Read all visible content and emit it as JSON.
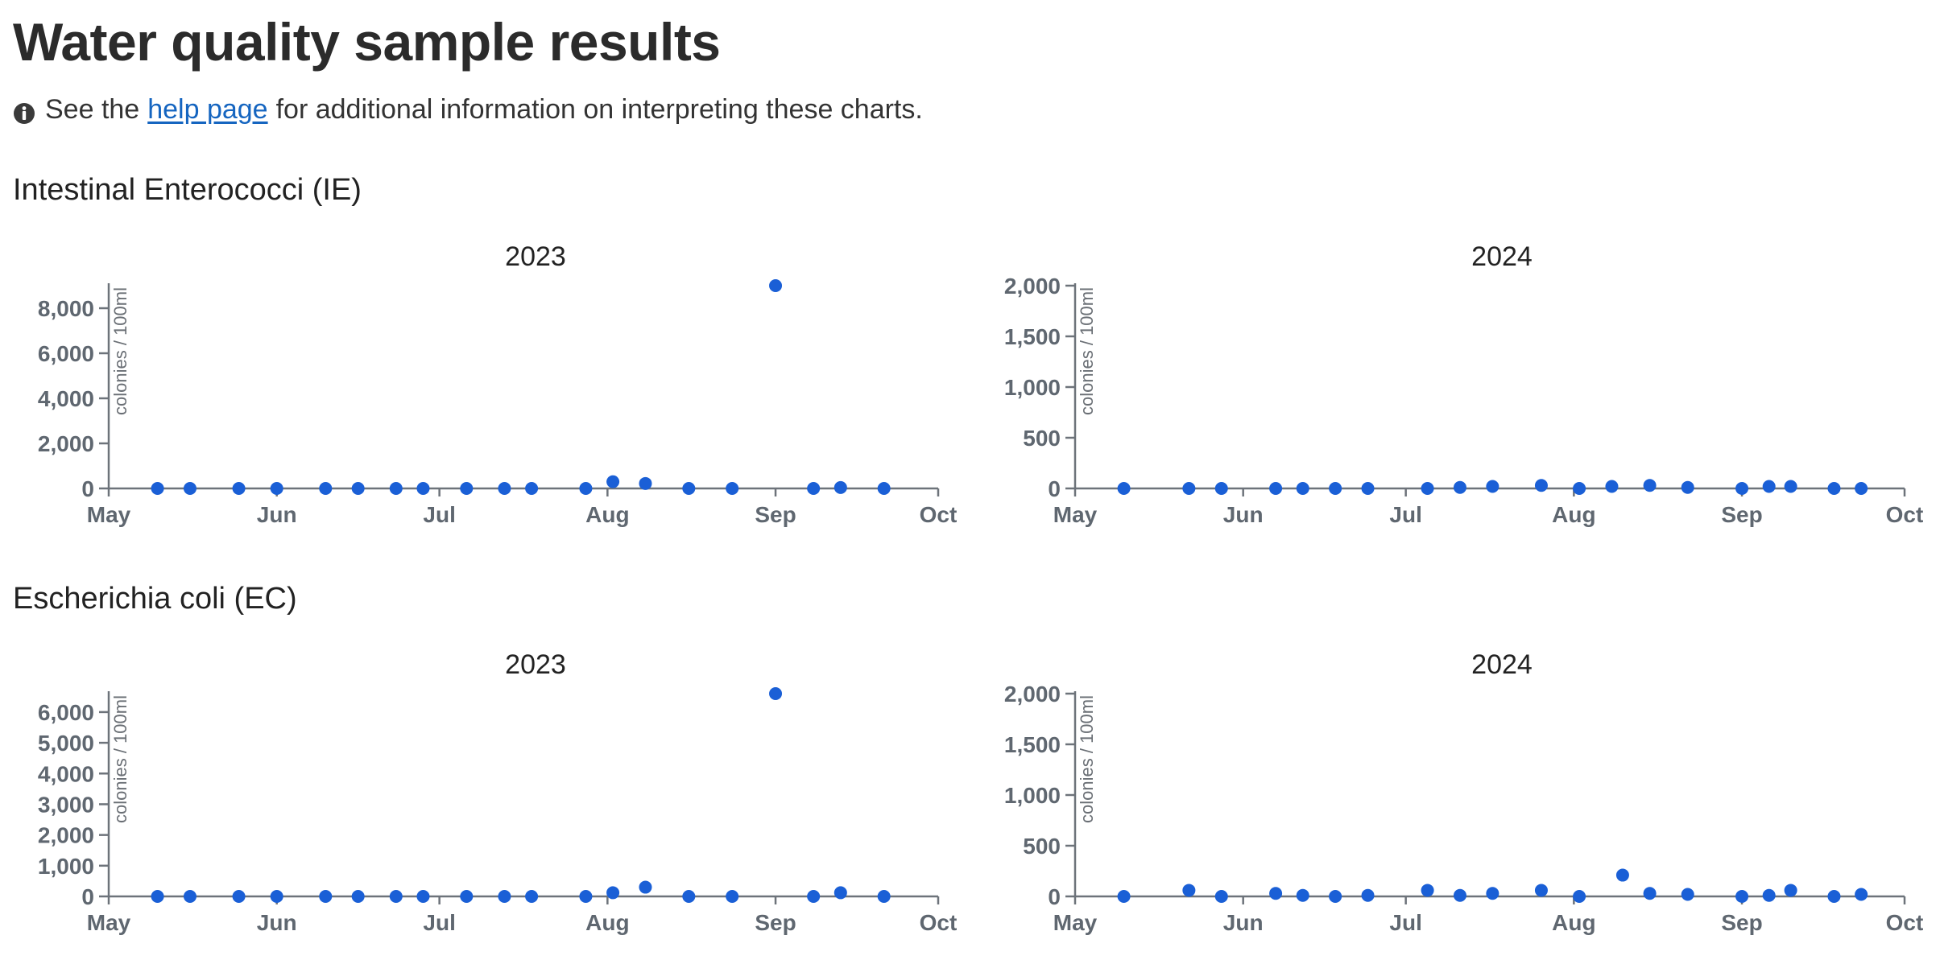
{
  "page": {
    "title": "Water quality sample results",
    "info": {
      "before": "See the",
      "link": "help page",
      "after": "for additional information on interpreting these charts."
    },
    "colors": {
      "point": "#1a5fd6",
      "axis": "#6d737a",
      "tick_text": "#5f6770",
      "link": "#1565c0"
    },
    "icons": {
      "info": "info-circle-icon"
    }
  },
  "sections": [
    {
      "title": "Intestinal Enterococci (IE)"
    },
    {
      "title": "Escherichia coli (EC)"
    }
  ],
  "chart_data": [
    {
      "type": "scatter",
      "group": "Intestinal Enterococci (IE)",
      "title": "2023",
      "xlabel": "",
      "ylabel": "colonies / 100ml",
      "x_ticks": [
        "May",
        "Jun",
        "Jul",
        "Aug",
        "Sep",
        "Oct"
      ],
      "xlim": [
        "2023-05-01",
        "2023-10-01"
      ],
      "ylim": [
        0,
        9000
      ],
      "y_ticks": [
        0,
        2000,
        4000,
        6000,
        8000
      ],
      "y_tick_labels": [
        "0",
        "2,000",
        "4,000",
        "6,000",
        "8,000"
      ],
      "grid": false,
      "points": [
        {
          "x": "2023-05-10",
          "y": 0
        },
        {
          "x": "2023-05-16",
          "y": 0
        },
        {
          "x": "2023-05-25",
          "y": 0
        },
        {
          "x": "2023-06-01",
          "y": 0
        },
        {
          "x": "2023-06-10",
          "y": 0
        },
        {
          "x": "2023-06-16",
          "y": 0
        },
        {
          "x": "2023-06-23",
          "y": 0
        },
        {
          "x": "2023-06-28",
          "y": 0
        },
        {
          "x": "2023-07-06",
          "y": 0
        },
        {
          "x": "2023-07-13",
          "y": 0
        },
        {
          "x": "2023-07-18",
          "y": 0
        },
        {
          "x": "2023-07-28",
          "y": 0
        },
        {
          "x": "2023-08-02",
          "y": 300
        },
        {
          "x": "2023-08-08",
          "y": 220
        },
        {
          "x": "2023-08-16",
          "y": 0
        },
        {
          "x": "2023-08-24",
          "y": 0
        },
        {
          "x": "2023-09-01",
          "y": 9000
        },
        {
          "x": "2023-09-08",
          "y": 0
        },
        {
          "x": "2023-09-13",
          "y": 40
        },
        {
          "x": "2023-09-21",
          "y": 0
        }
      ]
    },
    {
      "type": "scatter",
      "group": "Intestinal Enterococci (IE)",
      "title": "2024",
      "xlabel": "",
      "ylabel": "colonies / 100ml",
      "x_ticks": [
        "May",
        "Jun",
        "Jul",
        "Aug",
        "Sep",
        "Oct"
      ],
      "xlim": [
        "2024-05-01",
        "2024-10-01"
      ],
      "ylim": [
        0,
        2000
      ],
      "y_ticks": [
        0,
        500,
        1000,
        1500,
        2000
      ],
      "y_tick_labels": [
        "0",
        "500",
        "1,000",
        "1,500",
        "2,000"
      ],
      "grid": false,
      "points": [
        {
          "x": "2024-05-10",
          "y": 0
        },
        {
          "x": "2024-05-22",
          "y": 0
        },
        {
          "x": "2024-05-28",
          "y": 0
        },
        {
          "x": "2024-06-07",
          "y": 0
        },
        {
          "x": "2024-06-12",
          "y": 0
        },
        {
          "x": "2024-06-18",
          "y": 0
        },
        {
          "x": "2024-06-24",
          "y": 0
        },
        {
          "x": "2024-07-05",
          "y": 0
        },
        {
          "x": "2024-07-11",
          "y": 10
        },
        {
          "x": "2024-07-17",
          "y": 20
        },
        {
          "x": "2024-07-26",
          "y": 30
        },
        {
          "x": "2024-08-02",
          "y": 0
        },
        {
          "x": "2024-08-08",
          "y": 20
        },
        {
          "x": "2024-08-15",
          "y": 30
        },
        {
          "x": "2024-08-22",
          "y": 10
        },
        {
          "x": "2024-09-01",
          "y": 0
        },
        {
          "x": "2024-09-06",
          "y": 20
        },
        {
          "x": "2024-09-10",
          "y": 20
        },
        {
          "x": "2024-09-18",
          "y": 0
        },
        {
          "x": "2024-09-23",
          "y": 0
        }
      ]
    },
    {
      "type": "scatter",
      "group": "Escherichia coli (EC)",
      "title": "2023",
      "xlabel": "",
      "ylabel": "colonies / 100ml",
      "x_ticks": [
        "May",
        "Jun",
        "Jul",
        "Aug",
        "Sep",
        "Oct"
      ],
      "xlim": [
        "2023-05-01",
        "2023-10-01"
      ],
      "ylim": [
        0,
        6600
      ],
      "y_ticks": [
        0,
        1000,
        2000,
        3000,
        4000,
        5000,
        6000
      ],
      "y_tick_labels": [
        "0",
        "1,000",
        "2,000",
        "3,000",
        "4,000",
        "5,000",
        "6,000"
      ],
      "grid": false,
      "points": [
        {
          "x": "2023-05-10",
          "y": 0
        },
        {
          "x": "2023-05-16",
          "y": 0
        },
        {
          "x": "2023-05-25",
          "y": 0
        },
        {
          "x": "2023-06-01",
          "y": 0
        },
        {
          "x": "2023-06-10",
          "y": 0
        },
        {
          "x": "2023-06-16",
          "y": 0
        },
        {
          "x": "2023-06-23",
          "y": 0
        },
        {
          "x": "2023-06-28",
          "y": 0
        },
        {
          "x": "2023-07-06",
          "y": 0
        },
        {
          "x": "2023-07-13",
          "y": 0
        },
        {
          "x": "2023-07-18",
          "y": 0
        },
        {
          "x": "2023-07-28",
          "y": 0
        },
        {
          "x": "2023-08-02",
          "y": 120
        },
        {
          "x": "2023-08-08",
          "y": 300
        },
        {
          "x": "2023-08-16",
          "y": 0
        },
        {
          "x": "2023-08-24",
          "y": 0
        },
        {
          "x": "2023-09-01",
          "y": 6600
        },
        {
          "x": "2023-09-08",
          "y": 0
        },
        {
          "x": "2023-09-13",
          "y": 120
        },
        {
          "x": "2023-09-21",
          "y": 0
        }
      ]
    },
    {
      "type": "scatter",
      "group": "Escherichia coli (EC)",
      "title": "2024",
      "xlabel": "",
      "ylabel": "colonies / 100ml",
      "x_ticks": [
        "May",
        "Jun",
        "Jul",
        "Aug",
        "Sep",
        "Oct"
      ],
      "xlim": [
        "2024-05-01",
        "2024-10-01"
      ],
      "ylim": [
        0,
        2000
      ],
      "y_ticks": [
        0,
        500,
        1000,
        1500,
        2000
      ],
      "y_tick_labels": [
        "0",
        "500",
        "1,000",
        "1,500",
        "2,000"
      ],
      "grid": false,
      "points": [
        {
          "x": "2024-05-10",
          "y": 0
        },
        {
          "x": "2024-05-22",
          "y": 60
        },
        {
          "x": "2024-05-28",
          "y": 0
        },
        {
          "x": "2024-06-07",
          "y": 30
        },
        {
          "x": "2024-06-12",
          "y": 10
        },
        {
          "x": "2024-06-18",
          "y": 0
        },
        {
          "x": "2024-06-24",
          "y": 10
        },
        {
          "x": "2024-07-05",
          "y": 60
        },
        {
          "x": "2024-07-11",
          "y": 10
        },
        {
          "x": "2024-07-17",
          "y": 30
        },
        {
          "x": "2024-07-26",
          "y": 60
        },
        {
          "x": "2024-08-02",
          "y": 0
        },
        {
          "x": "2024-08-10",
          "y": 210
        },
        {
          "x": "2024-08-15",
          "y": 30
        },
        {
          "x": "2024-08-22",
          "y": 20
        },
        {
          "x": "2024-09-01",
          "y": 0
        },
        {
          "x": "2024-09-06",
          "y": 10
        },
        {
          "x": "2024-09-10",
          "y": 60
        },
        {
          "x": "2024-09-18",
          "y": 0
        },
        {
          "x": "2024-09-23",
          "y": 20
        }
      ]
    }
  ]
}
